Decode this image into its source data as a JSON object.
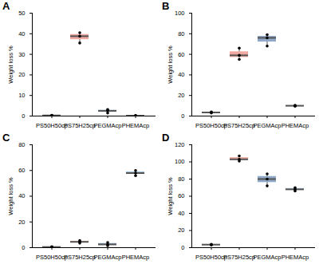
{
  "chart_data": [
    {
      "type": "box",
      "title": "A",
      "y_label": "Weight loss %",
      "categories": [
        "PS50H50cp",
        "PS75H25cp",
        "PEGMAcp",
        "PHEMAcp"
      ],
      "values": [
        [
          0.2,
          0.3,
          0.4
        ],
        [
          35.5,
          38.8,
          40.5
        ],
        [
          1.5,
          2.5,
          3.2
        ],
        [
          0.1,
          0.2,
          0.3
        ]
      ],
      "colors": [
        "#d6464f",
        "#f0a8a0",
        "#8fa8c8",
        "#a8c4dc"
      ],
      "ylim": [
        0,
        50
      ],
      "yticks": [
        0,
        10,
        20,
        30,
        40,
        50
      ]
    },
    {
      "type": "box",
      "title": "B",
      "y_label": "Weight loss %",
      "categories": [
        "PS50H50cp",
        "PS75H25cp",
        "PEGMAcp",
        "PHEMAcp"
      ],
      "values": [
        [
          3,
          3.5,
          4
        ],
        [
          55,
          59,
          66
        ],
        [
          68,
          76,
          79
        ],
        [
          9.5,
          10,
          10.5
        ]
      ],
      "colors": [
        "#d6464f",
        "#f0a8a0",
        "#8fa8c8",
        "#a8c4dc"
      ],
      "ylim": [
        0,
        100
      ],
      "yticks": [
        0,
        20,
        40,
        60,
        80,
        100
      ]
    },
    {
      "type": "box",
      "title": "C",
      "y_label": "Weight loss %",
      "categories": [
        "PS50H50cp",
        "PS75H25cp",
        "PEGMAcp",
        "PHEMAcp"
      ],
      "values": [
        [
          0.3,
          0.5,
          0.7
        ],
        [
          3.5,
          4.5,
          5.5
        ],
        [
          1.5,
          2.5,
          4
        ],
        [
          56,
          58,
          60
        ]
      ],
      "colors": [
        "#d6464f",
        "#f0a8a0",
        "#8fa8c8",
        "#a8c4dc"
      ],
      "ylim": [
        0,
        80
      ],
      "yticks": [
        0,
        20,
        40,
        60,
        80
      ]
    },
    {
      "type": "box",
      "title": "D",
      "y_label": "Weight loss %",
      "categories": [
        "PS50H50cp",
        "PS75H25cp",
        "PEGMAcp",
        "PHEMAcp"
      ],
      "values": [
        [
          3,
          3.5,
          4
        ],
        [
          101,
          103,
          107
        ],
        [
          72,
          80,
          86
        ],
        [
          66,
          68,
          70
        ]
      ],
      "colors": [
        "#d6464f",
        "#f0a8a0",
        "#8fa8c8",
        "#a8c4dc"
      ],
      "ylim": [
        0,
        120
      ],
      "yticks": [
        0,
        20,
        40,
        60,
        80,
        100,
        120
      ]
    }
  ]
}
